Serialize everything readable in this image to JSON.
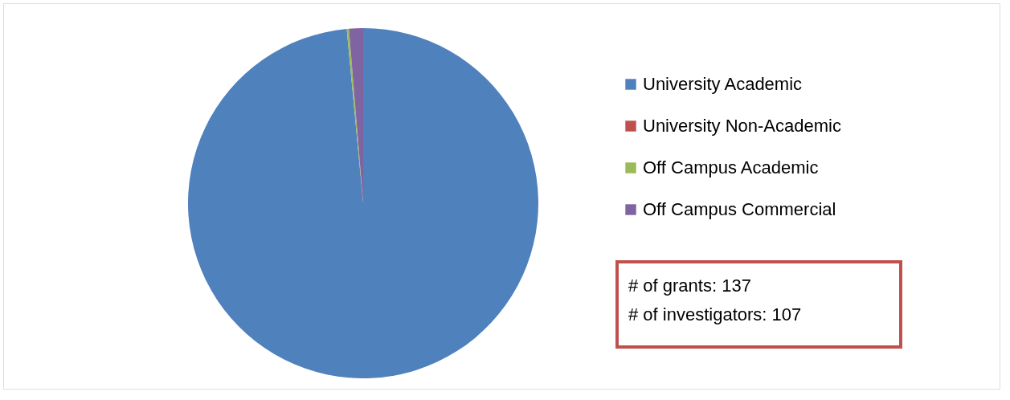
{
  "chart_data": {
    "type": "pie",
    "categories": [
      "University Academic",
      "University Non-Academic",
      "Off Campus Academic",
      "Off Campus Commercial"
    ],
    "values": [
      98.5,
      0,
      0.2,
      1.3
    ],
    "colors": [
      "#4f81bd",
      "#c0504d",
      "#9bbb59",
      "#8064a2"
    ],
    "legend": "right",
    "annotations": [
      "# of grants:  137",
      "# of investigators:  107"
    ]
  }
}
